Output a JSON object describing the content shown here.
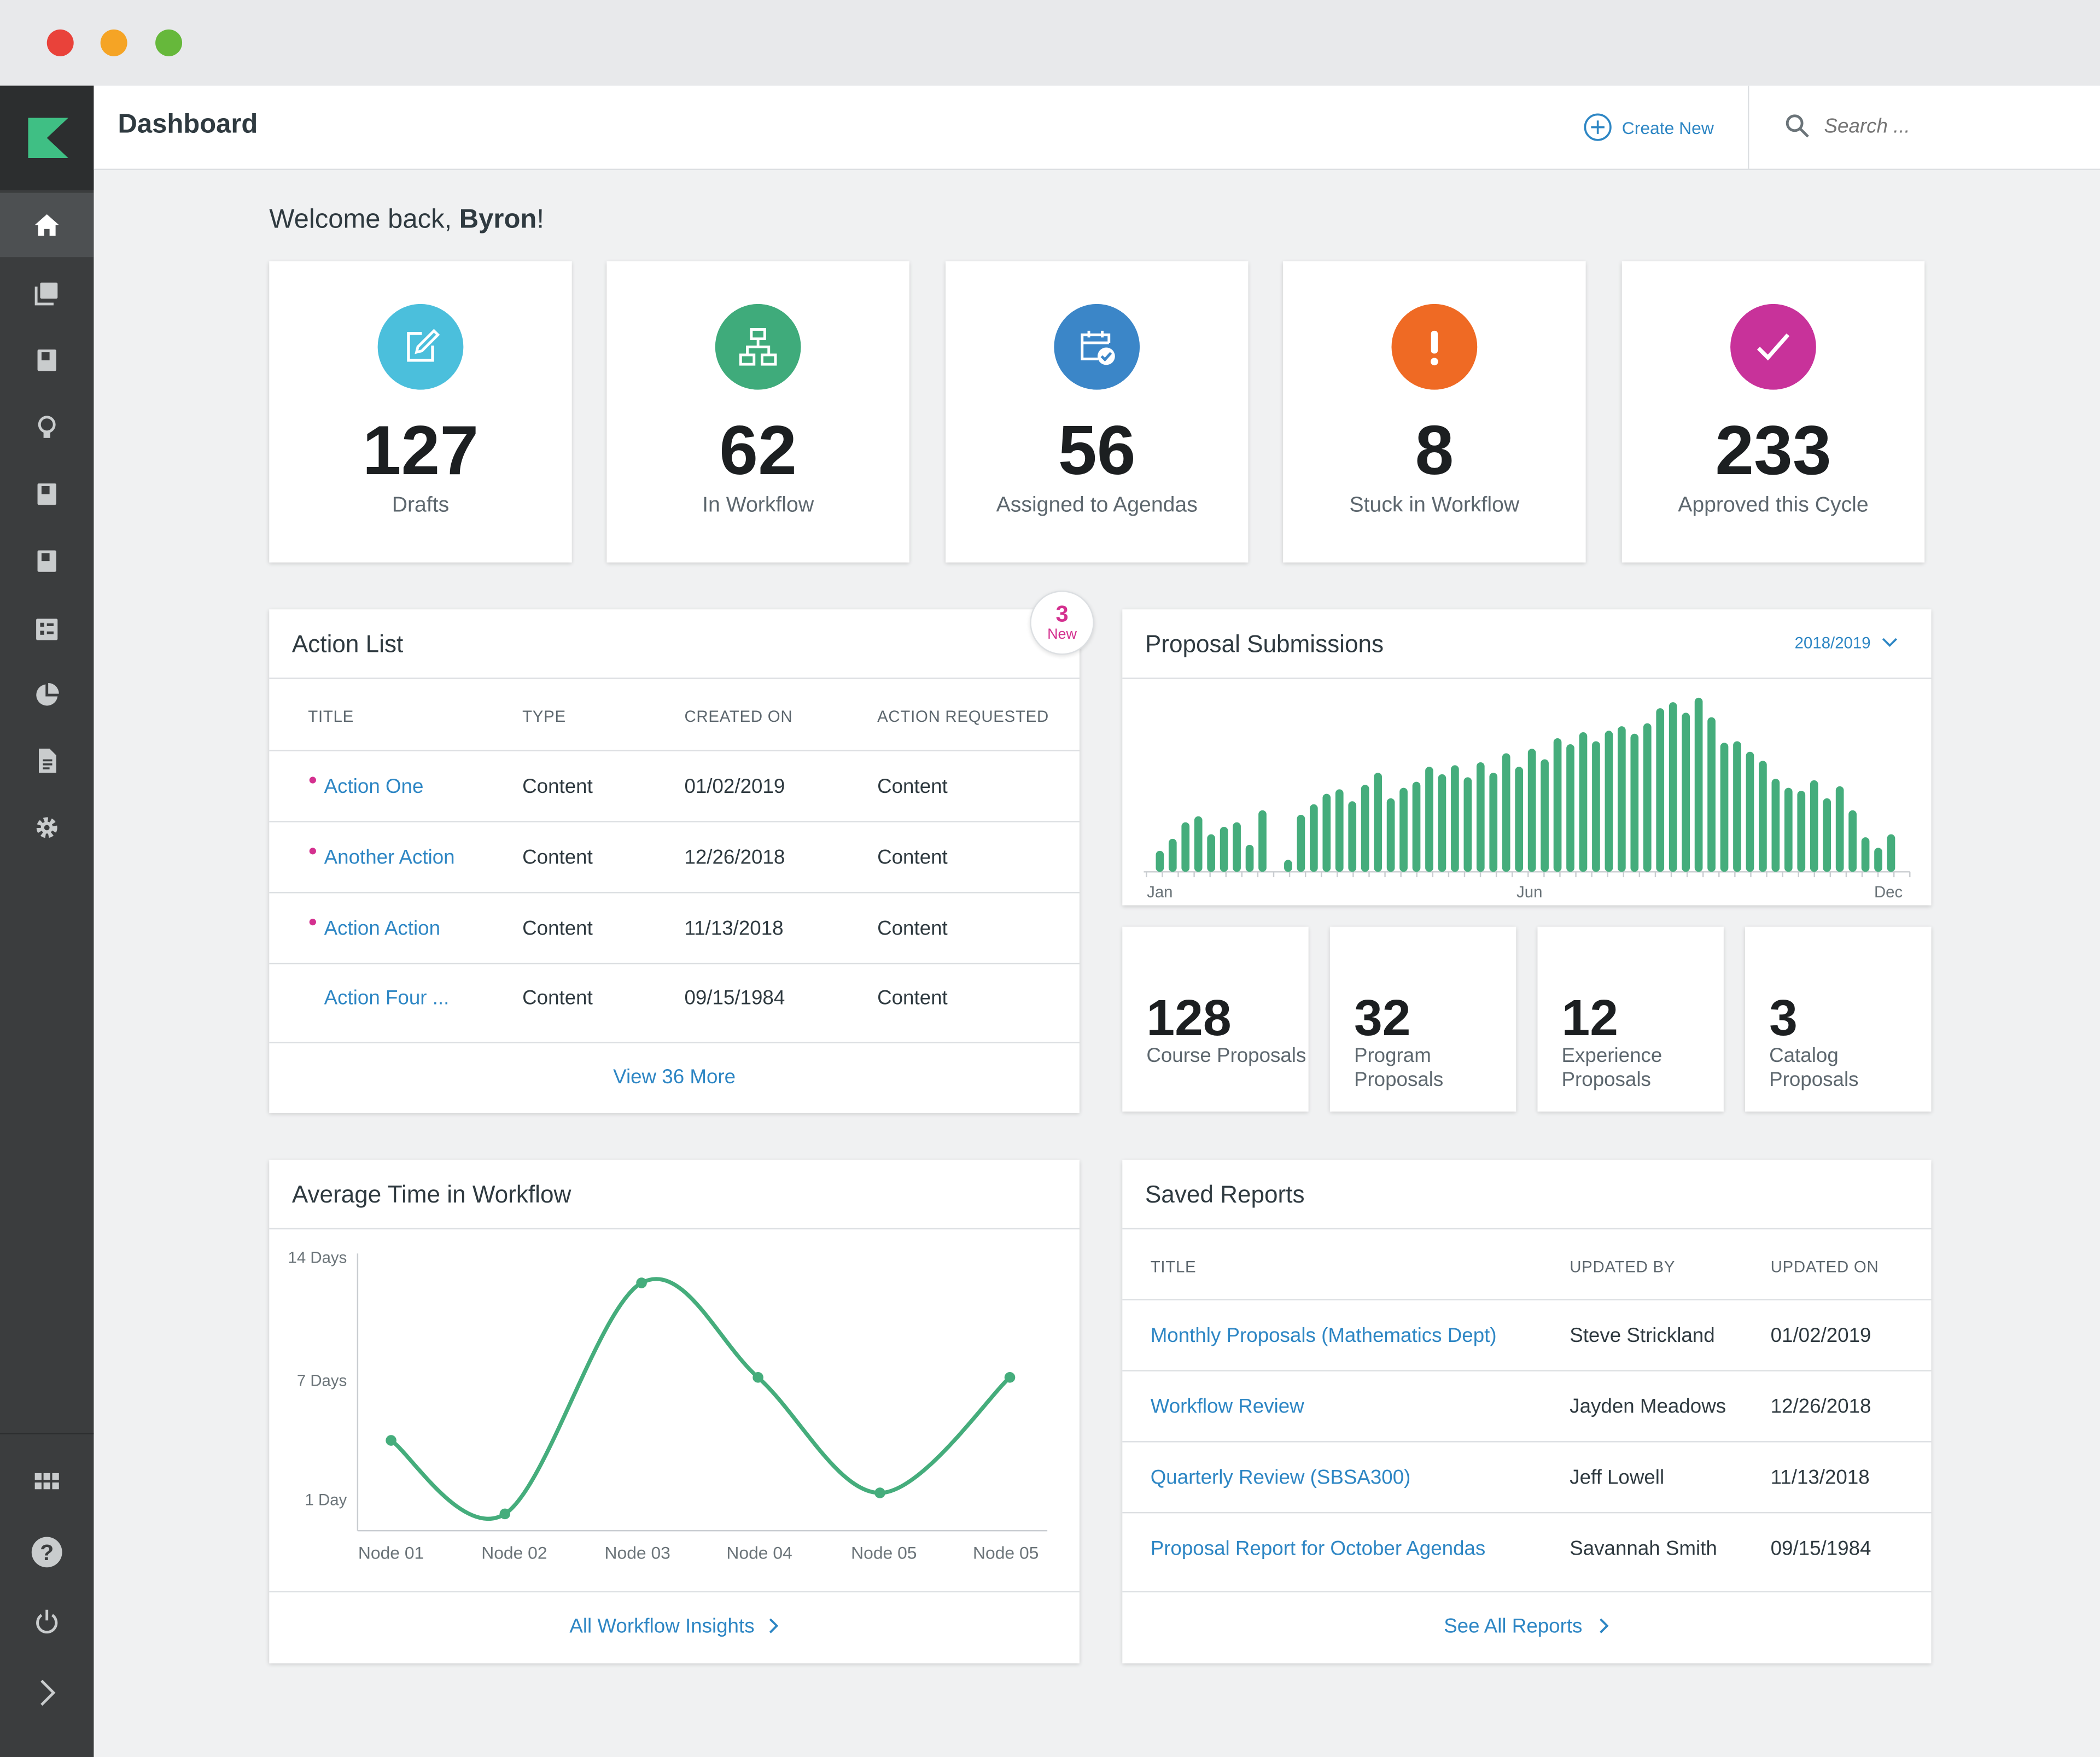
{
  "window": {
    "dots": [
      "#e9423a",
      "#f5a425",
      "#66b83b"
    ]
  },
  "header": {
    "title": "Dashboard",
    "create_new": "Create New",
    "search_placeholder": "Search ..."
  },
  "welcome": {
    "prefix": "Welcome back, ",
    "name": "Byron",
    "suffix": "!"
  },
  "stats": [
    {
      "value": "127",
      "label": "Drafts",
      "color": "#4bbfdc",
      "icon": "edit-icon"
    },
    {
      "value": "62",
      "label": "In Workflow",
      "color": "#3fab7b",
      "icon": "workflow-icon"
    },
    {
      "value": "56",
      "label": "Assigned to Agendas",
      "color": "#3b86c8",
      "icon": "calendar-check-icon"
    },
    {
      "value": "8",
      "label": "Stuck in Workflow",
      "color": "#ef6a24",
      "icon": "alert-icon"
    },
    {
      "value": "233",
      "label": "Approved this Cycle",
      "color": "#c8329a",
      "icon": "check-icon"
    }
  ],
  "action_list": {
    "title": "Action List",
    "badge": {
      "count": "3",
      "label": "New"
    },
    "columns": [
      "TITLE",
      "TYPE",
      "CREATED ON",
      "ACTION REQUESTED"
    ],
    "rows": [
      {
        "title": "Action One",
        "type": "Content",
        "created": "01/02/2019",
        "action": "Content",
        "new": true
      },
      {
        "title": "Another Action",
        "type": "Content",
        "created": "12/26/2018",
        "action": "Content",
        "new": true
      },
      {
        "title": "Action Action",
        "type": "Content",
        "created": "11/13/2018",
        "action": "Content",
        "new": true
      },
      {
        "title": "Action Four ...",
        "type": "Content",
        "created": "09/15/1984",
        "action": "Content",
        "new": false
      }
    ],
    "view_more": "View 36 More"
  },
  "proposal_submissions": {
    "title": "Proposal Submissions",
    "period": "2018/2019",
    "chart_data": {
      "type": "bar",
      "x_labels": [
        "Jan",
        "Jun",
        "Dec"
      ],
      "values": [
        14,
        22,
        33,
        37,
        25,
        30,
        33,
        18,
        41,
        0,
        8,
        38,
        45,
        52,
        55,
        47,
        58,
        66,
        49,
        56,
        60,
        70,
        65,
        71,
        63,
        73,
        66,
        79,
        70,
        82,
        75,
        89,
        85,
        93,
        87,
        94,
        97,
        92,
        99,
        109,
        113,
        106,
        116,
        103,
        86,
        87,
        80,
        74,
        62,
        56,
        54,
        61,
        49,
        57,
        41,
        23,
        16,
        25
      ],
      "color": "#45ad7c"
    }
  },
  "proposal_types": [
    {
      "value": "128",
      "label": "Course Proposals"
    },
    {
      "value": "32",
      "label": "Program Proposals"
    },
    {
      "value": "12",
      "label": "Experience Proposals"
    },
    {
      "value": "3",
      "label": "Catalog Proposals"
    }
  ],
  "avg_time": {
    "title": "Average Time in Workflow",
    "chart_data": {
      "type": "line",
      "categories": [
        "Node 01",
        "Node 02",
        "Node 03",
        "Node 04",
        "Node 05",
        "Node 05"
      ],
      "values": [
        4.5,
        1,
        12,
        7.5,
        2,
        7.5
      ],
      "y_ticks": [
        {
          "label": "14 Days",
          "value": 14
        },
        {
          "label": "7 Days",
          "value": 7
        },
        {
          "label": "1 Day",
          "value": 1
        }
      ],
      "ylim": [
        0,
        14
      ],
      "color": "#45ad7c"
    },
    "footer_link": "All Workflow Insights"
  },
  "saved_reports": {
    "title": "Saved Reports",
    "columns": [
      "TITLE",
      "UPDATED BY",
      "UPDATED ON"
    ],
    "rows": [
      {
        "title": "Monthly Proposals (Mathematics Dept)",
        "by": "Steve Strickland",
        "on": "01/02/2019"
      },
      {
        "title": "Workflow Review",
        "by": "Jayden Meadows",
        "on": "12/26/2018"
      },
      {
        "title": "Quarterly Review (SBSA300)",
        "by": "Jeff Lowell",
        "on": "11/13/2018"
      },
      {
        "title": "Proposal Report for October Agendas",
        "by": "Savannah Smith",
        "on": "09/15/1984"
      }
    ],
    "footer_link": "See All Reports"
  }
}
